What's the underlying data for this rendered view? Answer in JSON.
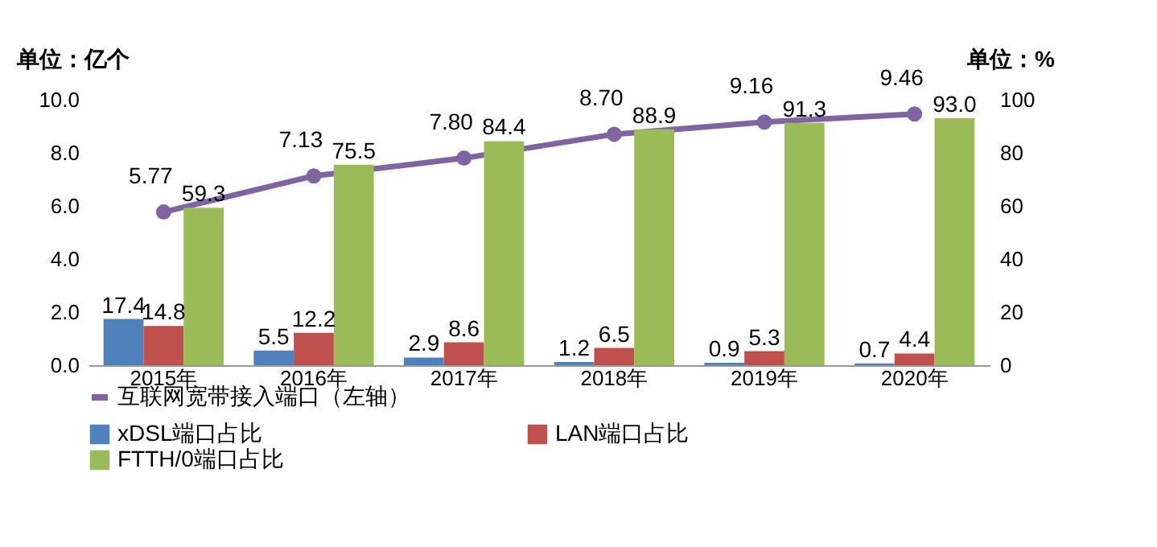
{
  "chart_data": {
    "type": "bar",
    "ylabel": "单位：亿个",
    "y2label": "单位：%",
    "categories": [
      "2015年",
      "2016年",
      "2017年",
      "2018年",
      "2019年",
      "2020年"
    ],
    "series": [
      {
        "name": "xDSL端口占比",
        "color": "#4f81bd",
        "axis": "y2",
        "values": [
          17.4,
          5.5,
          2.9,
          1.2,
          0.9,
          0.7
        ],
        "value_labels": [
          "17.4",
          "5.5",
          "2.9",
          "1.2",
          "0.9",
          "0.7"
        ]
      },
      {
        "name": "LAN端口占比",
        "color": "#c0504d",
        "axis": "y2",
        "values": [
          14.8,
          12.2,
          8.6,
          6.5,
          5.3,
          4.4
        ],
        "value_labels": [
          "14.8",
          "12.2",
          "8.6",
          "6.5",
          "5.3",
          "4.4"
        ]
      },
      {
        "name": "FTTH/0端口占比",
        "color": "#9bbb59",
        "axis": "y2",
        "values": [
          59.3,
          75.5,
          84.4,
          88.9,
          91.3,
          93.0
        ],
        "value_labels": [
          "59.3",
          "75.5",
          "84.4",
          "88.9",
          "91.3",
          "93.0"
        ]
      },
      {
        "name": "互联网宽带接入端口（左轴）",
        "type": "line",
        "color": "#8064a2",
        "marker": "circle",
        "values": [
          5.77,
          7.13,
          7.8,
          8.7,
          9.16,
          9.46
        ],
        "value_labels": [
          "5.77",
          "7.13",
          "7.80",
          "8.70",
          "9.16",
          "9.46"
        ]
      }
    ],
    "ylim": [
      0,
      10
    ],
    "yticks": [
      {
        "value": 0,
        "label": "0.0"
      },
      {
        "value": 2,
        "label": "2.0"
      },
      {
        "value": 4,
        "label": "4.0"
      },
      {
        "value": 6,
        "label": "6.0"
      },
      {
        "value": 8,
        "label": "8.0"
      },
      {
        "value": 10,
        "label": "10.0"
      }
    ],
    "y2lim": [
      0,
      100
    ],
    "y2ticks": [
      0,
      20,
      40,
      60,
      80,
      100
    ],
    "grid": false,
    "legend": "bottom"
  }
}
